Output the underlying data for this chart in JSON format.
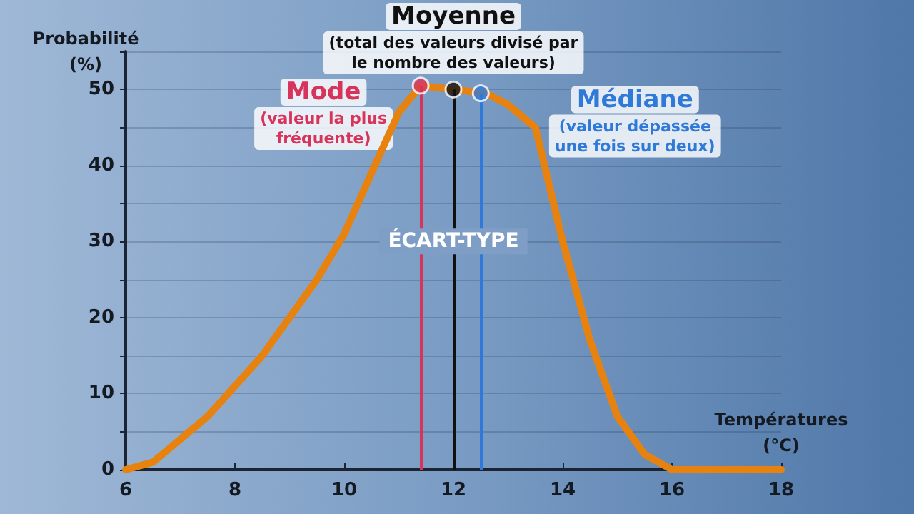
{
  "chart_data": {
    "type": "line",
    "xlabel": "Températures\n(°C)",
    "ylabel": "Probabilité\n(%)",
    "xlim": [
      6,
      18
    ],
    "xticks": [
      6,
      8,
      10,
      12,
      14,
      16,
      18
    ],
    "ylim": [
      0,
      55
    ],
    "yticks": [
      0,
      {
        "value": 5,
        "label": null
      },
      10,
      {
        "value": 15,
        "label": null
      },
      20,
      {
        "value": 25,
        "label": null
      },
      30,
      {
        "value": 35,
        "label": null
      },
      40,
      {
        "value": 45,
        "label": null
      },
      50,
      {
        "value": 55,
        "label": null
      }
    ],
    "grid": "y",
    "marker": "none",
    "series": [
      {
        "color": "#e8820f",
        "x": [
          6,
          6.5,
          7,
          7.5,
          8,
          8.5,
          9,
          9.5,
          10,
          10.5,
          11,
          11.4,
          12,
          12.6,
          13,
          13.5,
          14,
          14.5,
          15,
          15.5,
          16,
          17,
          18
        ],
        "values": [
          0,
          1,
          4,
          7,
          11,
          15,
          20,
          25,
          31,
          39,
          47,
          50.5,
          50,
          49.5,
          48,
          45,
          30,
          17,
          7,
          2,
          0,
          0,
          0
        ]
      },
      {
        "type": "scatter",
        "marker": "circle",
        "colors": [
          "#d8335a",
          "#111111",
          "#2f7ad8"
        ],
        "x": [
          11.4,
          12,
          12.5
        ],
        "values": [
          50.5,
          50,
          49.5
        ]
      }
    ],
    "ref_lines": [
      {
        "axis": "x",
        "value": 11.4,
        "color": "#d8335a",
        "label": "Mode\n(valeur la plus\nfréquente)"
      },
      {
        "axis": "x",
        "value": 12,
        "color": "#111111",
        "label": "Moyenne\n(total des valeurs divisé par\nle nombre des valeurs)"
      },
      {
        "axis": "x",
        "value": 12.5,
        "color": "#2f7ad8",
        "label": "Médiane\n(valeur dépassée\nune fois sur deux)"
      }
    ],
    "annotations": [
      {
        "text": "ÉCART-TYPE",
        "x": 12,
        "y": 30
      }
    ]
  }
}
